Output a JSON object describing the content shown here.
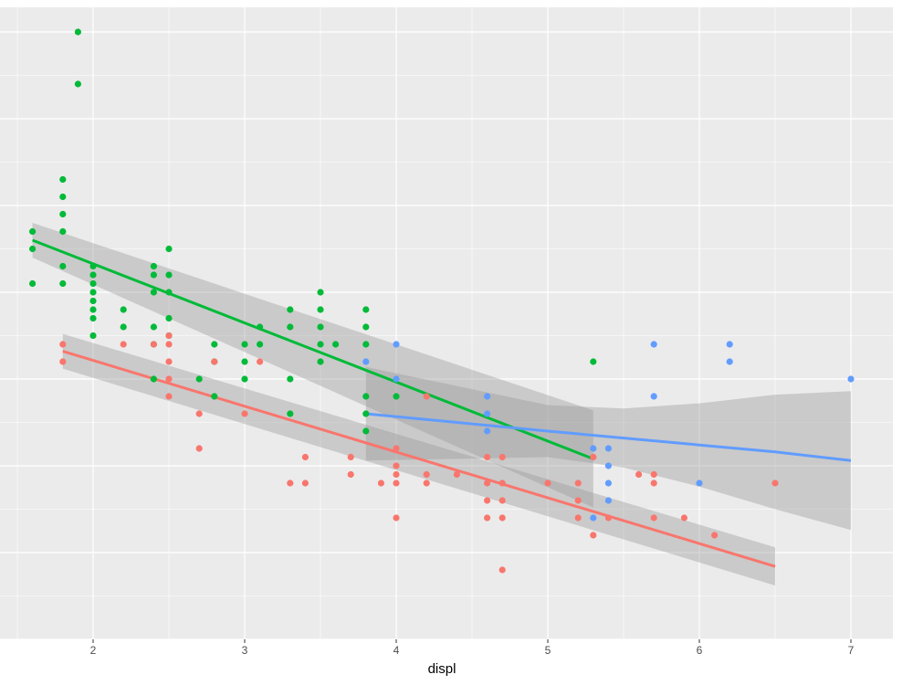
{
  "chart_data": {
    "type": "scatter",
    "title": "",
    "xlabel": "displ",
    "ylabel": "",
    "xlim": [
      1.5,
      7.25
    ],
    "ylim": [
      0.4,
      3.95
    ],
    "x_ticks": [
      2,
      3,
      4,
      5,
      6,
      7
    ],
    "grid": true,
    "legend": "none",
    "series": [
      {
        "color": "#00BA38",
        "points": [
          [
            1.6,
            2.35
          ],
          [
            1.6,
            2.25
          ],
          [
            1.6,
            2.05
          ],
          [
            1.8,
            2.65
          ],
          [
            1.8,
            2.55
          ],
          [
            1.8,
            2.45
          ],
          [
            1.8,
            2.35
          ],
          [
            1.8,
            2.15
          ],
          [
            1.8,
            2.05
          ],
          [
            1.9,
            3.2
          ],
          [
            1.9,
            3.5
          ],
          [
            2.0,
            2.15
          ],
          [
            2.0,
            2.1
          ],
          [
            2.0,
            2.05
          ],
          [
            2.0,
            2.0
          ],
          [
            2.0,
            1.95
          ],
          [
            2.0,
            1.9
          ],
          [
            2.0,
            1.85
          ],
          [
            2.0,
            1.75
          ],
          [
            2.2,
            1.8
          ],
          [
            2.2,
            1.9
          ],
          [
            2.4,
            2.15
          ],
          [
            2.4,
            2.1
          ],
          [
            2.4,
            2.0
          ],
          [
            2.4,
            1.8
          ],
          [
            2.4,
            1.7
          ],
          [
            2.4,
            1.5
          ],
          [
            2.5,
            2.25
          ],
          [
            2.5,
            2.1
          ],
          [
            2.5,
            2.0
          ],
          [
            2.5,
            1.85
          ],
          [
            2.5,
            1.75
          ],
          [
            2.7,
            1.5
          ],
          [
            2.8,
            1.7
          ],
          [
            2.8,
            1.6
          ],
          [
            2.8,
            1.4
          ],
          [
            3.0,
            1.7
          ],
          [
            3.0,
            1.6
          ],
          [
            3.0,
            1.5
          ],
          [
            3.1,
            1.8
          ],
          [
            3.1,
            1.7
          ],
          [
            3.3,
            1.9
          ],
          [
            3.3,
            1.8
          ],
          [
            3.3,
            1.5
          ],
          [
            3.3,
            1.3
          ],
          [
            3.5,
            2.0
          ],
          [
            3.5,
            1.9
          ],
          [
            3.5,
            1.8
          ],
          [
            3.5,
            1.7
          ],
          [
            3.5,
            1.6
          ],
          [
            3.6,
            1.7
          ],
          [
            3.8,
            1.9
          ],
          [
            3.8,
            1.8
          ],
          [
            3.8,
            1.7
          ],
          [
            3.8,
            1.4
          ],
          [
            3.8,
            1.3
          ],
          [
            3.8,
            1.2
          ],
          [
            4.0,
            1.4
          ],
          [
            5.3,
            1.6
          ]
        ],
        "fit": {
          "x": [
            1.6,
            5.3
          ],
          "y": [
            2.3,
            1.04
          ],
          "ci_lower": [
            2.2,
            0.76
          ],
          "ci_upper": [
            2.4,
            1.32
          ]
        }
      },
      {
        "color": "#F8766D",
        "points": [
          [
            1.8,
            1.7
          ],
          [
            1.8,
            1.6
          ],
          [
            2.2,
            1.7
          ],
          [
            2.4,
            1.7
          ],
          [
            2.5,
            1.5
          ],
          [
            2.5,
            1.4
          ],
          [
            2.5,
            1.6
          ],
          [
            2.5,
            1.7
          ],
          [
            2.5,
            1.75
          ],
          [
            2.7,
            1.3
          ],
          [
            2.7,
            1.1
          ],
          [
            2.8,
            1.6
          ],
          [
            3.0,
            1.3
          ],
          [
            3.1,
            1.6
          ],
          [
            3.3,
            0.9
          ],
          [
            3.4,
            1.05
          ],
          [
            3.4,
            0.9
          ],
          [
            3.7,
            1.05
          ],
          [
            3.7,
            0.95
          ],
          [
            3.9,
            0.9
          ],
          [
            4.0,
            1.1
          ],
          [
            4.0,
            1.0
          ],
          [
            4.0,
            0.95
          ],
          [
            4.0,
            0.9
          ],
          [
            4.0,
            0.7
          ],
          [
            4.2,
            1.4
          ],
          [
            4.2,
            0.95
          ],
          [
            4.2,
            0.9
          ],
          [
            4.4,
            0.95
          ],
          [
            4.6,
            1.05
          ],
          [
            4.6,
            0.9
          ],
          [
            4.6,
            0.8
          ],
          [
            4.6,
            0.7
          ],
          [
            4.7,
            1.05
          ],
          [
            4.7,
            0.9
          ],
          [
            4.7,
            0.8
          ],
          [
            4.7,
            0.7
          ],
          [
            4.7,
            0.4
          ],
          [
            5.0,
            0.9
          ],
          [
            5.2,
            0.9
          ],
          [
            5.2,
            0.8
          ],
          [
            5.2,
            0.7
          ],
          [
            5.3,
            1.05
          ],
          [
            5.3,
            0.6
          ],
          [
            5.4,
            0.7
          ],
          [
            5.6,
            0.95
          ],
          [
            5.7,
            0.95
          ],
          [
            5.7,
            0.9
          ],
          [
            5.7,
            0.7
          ],
          [
            5.9,
            0.7
          ],
          [
            6.1,
            0.6
          ],
          [
            6.5,
            0.9
          ]
        ],
        "fit": {
          "x": [
            1.8,
            6.5
          ],
          "y": [
            1.66,
            0.42
          ],
          "ci_lower": [
            1.56,
            0.31
          ],
          "ci_upper": [
            1.76,
            0.53
          ]
        }
      },
      {
        "color": "#619CFF",
        "points": [
          [
            3.8,
            1.6
          ],
          [
            4.0,
            1.7
          ],
          [
            4.0,
            1.5
          ],
          [
            4.6,
            1.4
          ],
          [
            4.6,
            1.3
          ],
          [
            4.6,
            1.2
          ],
          [
            5.3,
            1.1
          ],
          [
            5.3,
            0.7
          ],
          [
            5.4,
            1.1
          ],
          [
            5.4,
            1.0
          ],
          [
            5.4,
            0.9
          ],
          [
            5.4,
            0.8
          ],
          [
            5.7,
            1.7
          ],
          [
            5.7,
            1.4
          ],
          [
            6.0,
            0.9
          ],
          [
            6.2,
            1.7
          ],
          [
            6.2,
            1.6
          ],
          [
            7.0,
            1.5
          ]
        ],
        "fit": {
          "x": [
            3.8,
            4.4,
            5.0,
            5.5,
            6.0,
            6.5,
            7.0
          ],
          "y": [
            1.3,
            1.25,
            1.2,
            1.16,
            1.12,
            1.08,
            1.03
          ],
          "ci_lower": [
            1.03,
            1.04,
            1.05,
            0.99,
            0.88,
            0.75,
            0.63
          ],
          "ci_upper": [
            1.57,
            1.46,
            1.35,
            1.33,
            1.36,
            1.41,
            1.43
          ]
        }
      }
    ]
  }
}
